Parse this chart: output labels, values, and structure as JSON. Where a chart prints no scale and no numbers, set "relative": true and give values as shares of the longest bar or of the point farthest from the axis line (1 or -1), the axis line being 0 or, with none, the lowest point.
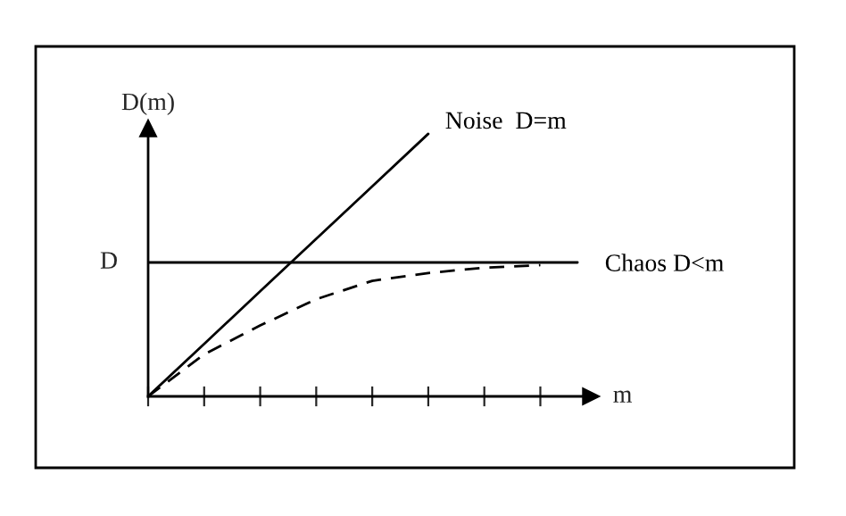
{
  "chart_data": {
    "type": "line",
    "relative": true,
    "xlabel": "m",
    "ylabel": "D(m)",
    "categories": [
      null,
      null,
      null,
      null,
      null,
      null,
      null,
      null
    ],
    "grid": false,
    "legend": false,
    "ref_lines": [
      {
        "axis": "y",
        "value": 0.51,
        "label": "D",
        "color": "#000000",
        "line_style": "solid"
      }
    ],
    "series": [
      {
        "name": "Noise  D=m",
        "color": "#000000",
        "line_style": "solid",
        "values": [
          0,
          0.2,
          0.4,
          0.6,
          0.8,
          1,
          null,
          null
        ]
      },
      {
        "name": "Chaos D<m",
        "color": "#000000",
        "line_style": "dashed",
        "values": [
          0,
          0.16,
          0.27,
          0.37,
          0.44,
          0.47,
          0.49,
          0.5
        ]
      }
    ]
  }
}
